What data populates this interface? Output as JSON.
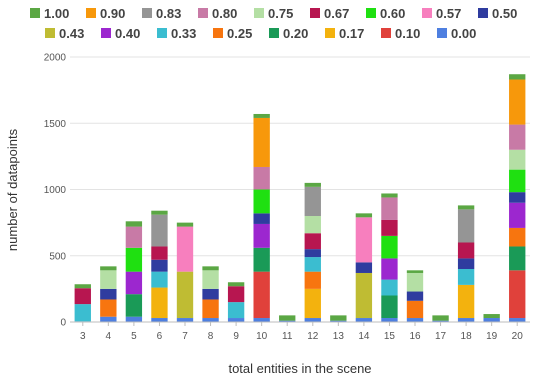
{
  "chart_data": {
    "type": "bar",
    "stacked": true,
    "xlabel": "total entities in the scene",
    "ylabel": "number of datapoints",
    "ylim": [
      0,
      2000
    ],
    "yticks": [
      0,
      500,
      1000,
      1500,
      2000
    ],
    "grid": true,
    "legend_position": "top",
    "categories": [
      "3",
      "4",
      "5",
      "6",
      "7",
      "8",
      "9",
      "10",
      "11",
      "12",
      "13",
      "14",
      "15",
      "16",
      "17",
      "18",
      "19",
      "20"
    ],
    "series": [
      {
        "name": "0.00",
        "color": "#4e7fe0",
        "values": [
          5,
          40,
          40,
          30,
          30,
          30,
          30,
          30,
          10,
          30,
          10,
          30,
          30,
          30,
          10,
          30,
          30,
          30
        ]
      },
      {
        "name": "0.10",
        "color": "#e0413b",
        "values": [
          0,
          0,
          0,
          0,
          0,
          0,
          0,
          350,
          0,
          0,
          0,
          0,
          0,
          0,
          0,
          0,
          0,
          360
        ]
      },
      {
        "name": "0.17",
        "color": "#f3b20e",
        "values": [
          0,
          0,
          0,
          230,
          0,
          0,
          0,
          0,
          0,
          220,
          0,
          0,
          0,
          0,
          0,
          250,
          0,
          0
        ]
      },
      {
        "name": "0.20",
        "color": "#1a9a57",
        "values": [
          0,
          0,
          170,
          0,
          0,
          0,
          0,
          180,
          0,
          0,
          0,
          0,
          170,
          0,
          0,
          0,
          0,
          180
        ]
      },
      {
        "name": "0.25",
        "color": "#f7750f",
        "values": [
          0,
          130,
          0,
          0,
          0,
          140,
          0,
          0,
          0,
          130,
          0,
          0,
          0,
          130,
          0,
          0,
          0,
          140
        ]
      },
      {
        "name": "0.33",
        "color": "#3bbdd0",
        "values": [
          130,
          0,
          0,
          120,
          0,
          0,
          120,
          0,
          0,
          110,
          0,
          0,
          120,
          0,
          0,
          120,
          0,
          0
        ]
      },
      {
        "name": "0.40",
        "color": "#9c27cf",
        "values": [
          0,
          0,
          170,
          0,
          0,
          0,
          0,
          180,
          0,
          0,
          0,
          0,
          160,
          0,
          0,
          0,
          0,
          190
        ]
      },
      {
        "name": "0.43",
        "color": "#bfbc33",
        "values": [
          0,
          0,
          0,
          0,
          350,
          0,
          0,
          0,
          0,
          0,
          0,
          340,
          0,
          0,
          0,
          0,
          0,
          0
        ]
      },
      {
        "name": "0.50",
        "color": "#2f3c9f",
        "values": [
          0,
          80,
          0,
          90,
          0,
          80,
          0,
          80,
          0,
          60,
          0,
          80,
          0,
          70,
          0,
          80,
          0,
          80
        ]
      },
      {
        "name": "0.57",
        "color": "#f77fbe",
        "values": [
          0,
          0,
          0,
          0,
          340,
          0,
          0,
          0,
          0,
          0,
          0,
          340,
          0,
          0,
          0,
          0,
          0,
          0
        ]
      },
      {
        "name": "0.60",
        "color": "#1fe011",
        "values": [
          0,
          0,
          180,
          0,
          0,
          0,
          0,
          180,
          0,
          0,
          0,
          0,
          170,
          0,
          0,
          0,
          0,
          170
        ]
      },
      {
        "name": "0.67",
        "color": "#b71650",
        "values": [
          120,
          0,
          0,
          100,
          0,
          0,
          120,
          0,
          0,
          120,
          0,
          0,
          120,
          0,
          0,
          120,
          0,
          0
        ]
      },
      {
        "name": "0.75",
        "color": "#b4dfa4",
        "values": [
          0,
          140,
          0,
          0,
          0,
          140,
          0,
          0,
          0,
          130,
          0,
          0,
          0,
          140,
          0,
          0,
          0,
          150
        ]
      },
      {
        "name": "0.80",
        "color": "#c87aa6",
        "values": [
          0,
          0,
          160,
          0,
          0,
          0,
          0,
          170,
          0,
          0,
          0,
          0,
          170,
          0,
          0,
          0,
          0,
          190
        ]
      },
      {
        "name": "0.83",
        "color": "#959595",
        "values": [
          0,
          0,
          0,
          240,
          0,
          0,
          0,
          0,
          0,
          220,
          0,
          0,
          0,
          0,
          0,
          250,
          0,
          0
        ]
      },
      {
        "name": "0.90",
        "color": "#f7980b",
        "values": [
          0,
          0,
          0,
          0,
          0,
          0,
          0,
          370,
          0,
          0,
          0,
          0,
          0,
          0,
          0,
          0,
          0,
          340
        ]
      },
      {
        "name": "1.00",
        "color": "#5ba744",
        "values": [
          30,
          30,
          40,
          30,
          30,
          30,
          30,
          30,
          40,
          30,
          40,
          30,
          30,
          20,
          40,
          30,
          30,
          40
        ]
      }
    ]
  }
}
